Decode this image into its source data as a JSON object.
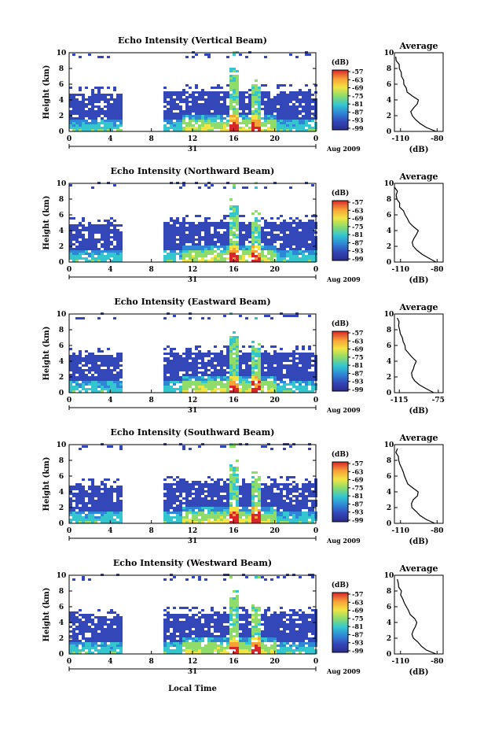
{
  "figure": {
    "xlabel": "Local Time"
  },
  "panels": [
    {
      "title": "Echo Intensity (Vertical Beam)",
      "ylabel": "Height (km)",
      "yticks": [
        "0",
        "2",
        "4",
        "6",
        "8",
        "10"
      ],
      "xticks": [
        "0",
        "4",
        "8",
        "12",
        "16",
        "20",
        "0"
      ],
      "day": "31",
      "date_label": "Aug 2009",
      "cb_unit": "(dB)",
      "cb_ticks": [
        "-57",
        "-63",
        "-69",
        "-75",
        "-81",
        "-87",
        "-93",
        "-99"
      ],
      "avg_title": "Average",
      "avg_yticks": [
        "0",
        "2",
        "4",
        "6",
        "8",
        "10"
      ],
      "avg_xticks": [
        "-110",
        "-80"
      ],
      "avg_xlabel": "(dB)"
    },
    {
      "title": "Echo Intensity (Northward Beam)",
      "ylabel": "Height (km)",
      "yticks": [
        "0",
        "2",
        "4",
        "6",
        "8",
        "10"
      ],
      "xticks": [
        "0",
        "4",
        "8",
        "12",
        "16",
        "20",
        "0"
      ],
      "day": "31",
      "date_label": "Aug 2009",
      "cb_unit": "(dB)",
      "cb_ticks": [
        "-57",
        "-63",
        "-69",
        "-75",
        "-81",
        "-87",
        "-93",
        "-99"
      ],
      "avg_title": "Average",
      "avg_yticks": [
        "0",
        "2",
        "4",
        "6",
        "8",
        "10"
      ],
      "avg_xticks": [
        "-110",
        "-80"
      ],
      "avg_xlabel": "(dB)"
    },
    {
      "title": "Echo Intensity (Eastward Beam)",
      "ylabel": "Height (km)",
      "yticks": [
        "0",
        "2",
        "4",
        "6",
        "8",
        "10"
      ],
      "xticks": [
        "0",
        "4",
        "8",
        "12",
        "16",
        "20",
        "0"
      ],
      "day": "31",
      "date_label": "Aug 2009",
      "cb_unit": "(dB)",
      "cb_ticks": [
        "-57",
        "-63",
        "-69",
        "-75",
        "-81",
        "-87",
        "-93",
        "-99"
      ],
      "avg_title": "Average",
      "avg_yticks": [
        "0",
        "2",
        "4",
        "6",
        "8",
        "10"
      ],
      "avg_xticks": [
        "-115",
        "-75"
      ],
      "avg_xlabel": "(dB)"
    },
    {
      "title": "Echo Intensity (Southward Beam)",
      "ylabel": "Height (km)",
      "yticks": [
        "0",
        "2",
        "4",
        "6",
        "8",
        "10"
      ],
      "xticks": [
        "0",
        "4",
        "8",
        "12",
        "16",
        "20",
        "0"
      ],
      "day": "31",
      "date_label": "Aug 2009",
      "cb_unit": "(dB)",
      "cb_ticks": [
        "-57",
        "-63",
        "-69",
        "-75",
        "-81",
        "-87",
        "-93",
        "-99"
      ],
      "avg_title": "Average",
      "avg_yticks": [
        "0",
        "2",
        "4",
        "6",
        "8",
        "10"
      ],
      "avg_xticks": [
        "-110",
        "-80"
      ],
      "avg_xlabel": "(dB)"
    },
    {
      "title": "Echo Intensity (Westward Beam)",
      "ylabel": "Height (km)",
      "yticks": [
        "0",
        "2",
        "4",
        "6",
        "8",
        "10"
      ],
      "xticks": [
        "0",
        "4",
        "8",
        "12",
        "16",
        "20",
        "0"
      ],
      "day": "31",
      "date_label": "Aug 2009",
      "cb_unit": "(dB)",
      "cb_ticks": [
        "-57",
        "-63",
        "-69",
        "-75",
        "-81",
        "-87",
        "-93",
        "-99"
      ],
      "avg_title": "Average",
      "avg_yticks": [
        "0",
        "2",
        "4",
        "6",
        "8",
        "10"
      ],
      "avg_xticks": [
        "-110",
        "-80"
      ],
      "avg_xlabel": "(dB)"
    }
  ],
  "chart_data": [
    {
      "type": "heatmap",
      "title": "Echo Intensity (Vertical Beam)",
      "xlabel": "",
      "ylabel": "Height (km)",
      "xlim": [
        0,
        24
      ],
      "ylim": [
        0,
        10
      ],
      "colorbar": {
        "unit": "(dB)",
        "range": [
          -99,
          -57
        ],
        "ticks": [
          -57,
          -63,
          -69,
          -75,
          -81,
          -87,
          -93,
          -99
        ]
      },
      "data_gaps_hours": [
        [
          5,
          9
        ]
      ],
      "notes_visible": "echo mostly below 5 km; convective plumes near 16 h and 18 h reaching ~7 km",
      "average_profile": {
        "title": "Average",
        "xlabel": "(dB)",
        "xlim": [
          -115,
          -75
        ],
        "height_km": [
          0,
          0.5,
          1,
          1.5,
          2,
          2.5,
          3,
          3.5,
          4,
          4.5,
          5,
          5.5,
          6,
          6.5,
          7,
          7.5,
          8,
          8.5,
          9,
          9.5
        ],
        "dB": [
          -80,
          -88,
          -93,
          -97,
          -100,
          -101,
          -99,
          -97,
          -96,
          -100,
          -104,
          -105,
          -107,
          -108,
          -109,
          -110,
          -111,
          -112,
          -113,
          -114
        ]
      }
    },
    {
      "type": "heatmap",
      "title": "Echo Intensity (Northward Beam)",
      "xlabel": "",
      "ylabel": "Height (km)",
      "xlim": [
        0,
        24
      ],
      "ylim": [
        0,
        10
      ],
      "colorbar": {
        "unit": "(dB)",
        "range": [
          -99,
          -57
        ],
        "ticks": [
          -57,
          -63,
          -69,
          -75,
          -81,
          -87,
          -93,
          -99
        ]
      },
      "data_gaps_hours": [
        [
          5,
          9
        ]
      ],
      "average_profile": {
        "title": "Average",
        "xlabel": "(dB)",
        "xlim": [
          -115,
          -75
        ],
        "height_km": [
          0,
          0.5,
          1,
          1.5,
          2,
          2.5,
          3,
          3.5,
          4,
          4.5,
          5,
          5.5,
          6,
          6.5,
          7,
          7.5,
          8,
          8.5,
          9,
          9.5
        ],
        "dB": [
          -80,
          -87,
          -92,
          -96,
          -99,
          -101,
          -99,
          -97,
          -96,
          -99,
          -103,
          -105,
          -106,
          -108,
          -110,
          -111,
          -112,
          -113,
          -113,
          -114
        ]
      }
    },
    {
      "type": "heatmap",
      "title": "Echo Intensity (Eastward Beam)",
      "xlabel": "",
      "ylabel": "Height (km)",
      "xlim": [
        0,
        24
      ],
      "ylim": [
        0,
        10
      ],
      "colorbar": {
        "unit": "(dB)",
        "range": [
          -99,
          -57
        ],
        "ticks": [
          -57,
          -63,
          -69,
          -75,
          -81,
          -87,
          -93,
          -99
        ]
      },
      "data_gaps_hours": [
        [
          5,
          9
        ]
      ],
      "average_profile": {
        "title": "Average",
        "xlabel": "(dB)",
        "xlim": [
          -120,
          -70
        ],
        "height_km": [
          0,
          0.5,
          1,
          1.5,
          2,
          2.5,
          3,
          3.5,
          4,
          4.5,
          5,
          5.5,
          6,
          6.5,
          7,
          7.5,
          8,
          8.5,
          9,
          9.5
        ],
        "dB": [
          -79,
          -88,
          -95,
          -99,
          -102,
          -103,
          -101,
          -99,
          -98,
          -102,
          -106,
          -108,
          -110,
          -111,
          -112,
          -113,
          -114,
          -115,
          -116,
          -117
        ]
      }
    },
    {
      "type": "heatmap",
      "title": "Echo Intensity (Southward Beam)",
      "xlabel": "",
      "ylabel": "Height (km)",
      "xlim": [
        0,
        24
      ],
      "ylim": [
        0,
        10
      ],
      "colorbar": {
        "unit": "(dB)",
        "range": [
          -99,
          -57
        ],
        "ticks": [
          -57,
          -63,
          -69,
          -75,
          -81,
          -87,
          -93,
          -99
        ]
      },
      "data_gaps_hours": [
        [
          5,
          9
        ]
      ],
      "average_profile": {
        "title": "Average",
        "xlabel": "(dB)",
        "xlim": [
          -115,
          -75
        ],
        "height_km": [
          0,
          0.5,
          1,
          1.5,
          2,
          2.5,
          3,
          3.5,
          4,
          4.5,
          5,
          5.5,
          6,
          6.5,
          7,
          7.5,
          8,
          8.5,
          9,
          9.5
        ],
        "dB": [
          -81,
          -89,
          -94,
          -97,
          -100,
          -101,
          -99,
          -97,
          -96,
          -100,
          -104,
          -105,
          -106,
          -108,
          -109,
          -110,
          -111,
          -112,
          -113,
          -113
        ]
      }
    },
    {
      "type": "heatmap",
      "title": "Echo Intensity (Westward Beam)",
      "xlabel": "Local Time",
      "ylabel": "Height (km)",
      "xlim": [
        0,
        24
      ],
      "ylim": [
        0,
        10
      ],
      "colorbar": {
        "unit": "(dB)",
        "range": [
          -99,
          -57
        ],
        "ticks": [
          -57,
          -63,
          -69,
          -75,
          -81,
          -87,
          -93,
          -99
        ]
      },
      "data_gaps_hours": [
        [
          5,
          9
        ]
      ],
      "average_profile": {
        "title": "Average",
        "xlabel": "(dB)",
        "xlim": [
          -115,
          -75
        ],
        "height_km": [
          0,
          0.5,
          1,
          1.5,
          2,
          2.5,
          3,
          3.5,
          4,
          4.5,
          5,
          5.5,
          6,
          6.5,
          7,
          7.5,
          8,
          8.5,
          9,
          9.5
        ],
        "dB": [
          -80,
          -88,
          -93,
          -96,
          -99,
          -100,
          -99,
          -97,
          -96,
          -99,
          -103,
          -104,
          -106,
          -107,
          -108,
          -109,
          -110,
          -111,
          -111,
          -112
        ]
      }
    }
  ]
}
